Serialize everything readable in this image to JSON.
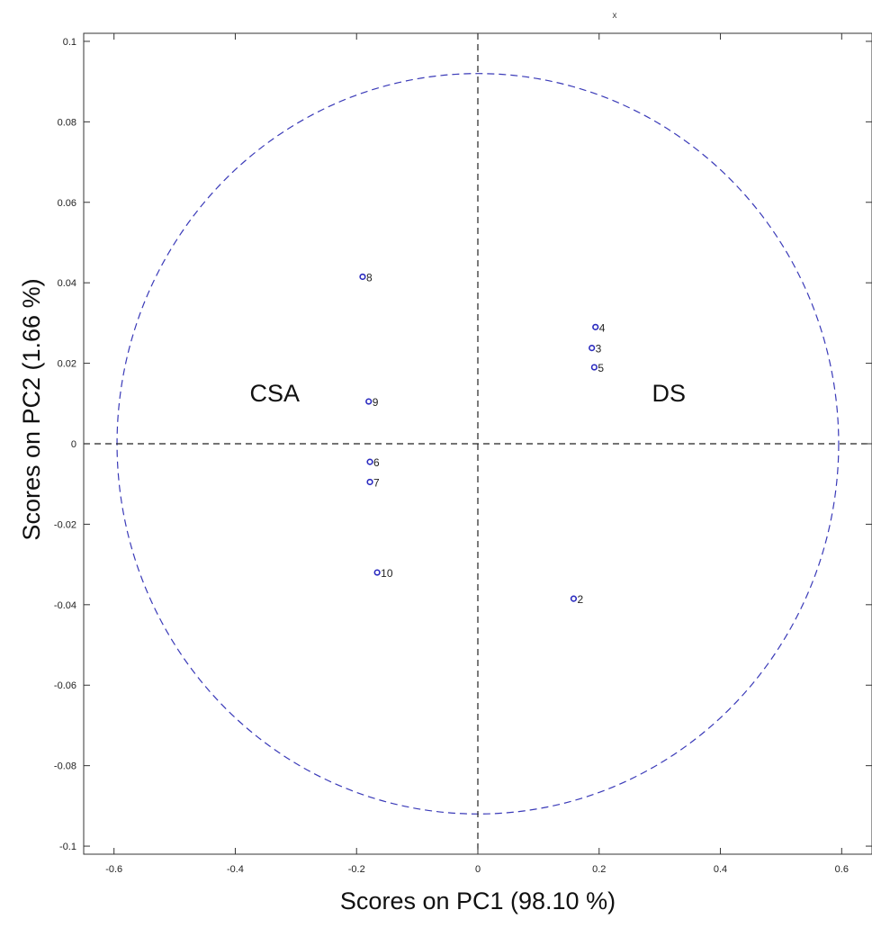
{
  "chart_data": {
    "type": "scatter",
    "title": "",
    "top_mark": "x",
    "xlabel": "Scores on PC1 (98.10 %)",
    "ylabel": "Scores on PC2 (1.66 %)",
    "xlim": [
      -0.65,
      0.65
    ],
    "ylim": [
      -0.102,
      0.102
    ],
    "xticks": [
      -0.6,
      -0.4,
      -0.2,
      0,
      0.2,
      0.4,
      0.6
    ],
    "xtick_labels": [
      "-0.6",
      "-0.4",
      "-0.2",
      "0",
      "0.2",
      "0.4",
      "0.6"
    ],
    "yticks": [
      0.1,
      0.08,
      0.06,
      0.04,
      0.02,
      0,
      -0.02,
      -0.04,
      -0.06,
      -0.08,
      -0.1
    ],
    "ytick_labels": [
      "0.1",
      "0.08",
      "0.06",
      "0.04",
      "0.02",
      "0",
      "-0.02",
      "-0.04",
      "-0.06",
      "-0.08",
      "-0.1"
    ],
    "grid": false,
    "ellipse": {
      "rx": 0.595,
      "ry": 0.092,
      "color": "#3a3ab8"
    },
    "reference_lines": {
      "x": 0,
      "y": 0,
      "color": "#222222"
    },
    "point_color": "#2b2bbf",
    "points": [
      {
        "label": "2",
        "x": 0.158,
        "y": -0.0385
      },
      {
        "label": "3",
        "x": 0.188,
        "y": 0.0238
      },
      {
        "label": "4",
        "x": 0.194,
        "y": 0.029
      },
      {
        "label": "5",
        "x": 0.192,
        "y": 0.019
      },
      {
        "label": "6",
        "x": -0.178,
        "y": -0.0045
      },
      {
        "label": "7",
        "x": -0.178,
        "y": -0.0095
      },
      {
        "label": "8",
        "x": -0.19,
        "y": 0.0415
      },
      {
        "label": "9",
        "x": -0.18,
        "y": 0.0105
      },
      {
        "label": "10",
        "x": -0.166,
        "y": -0.032
      }
    ],
    "annotations": [
      {
        "text": "CSA",
        "x": -0.335,
        "y": 0.0125
      },
      {
        "text": "DS",
        "x": 0.315,
        "y": 0.0125
      }
    ]
  }
}
